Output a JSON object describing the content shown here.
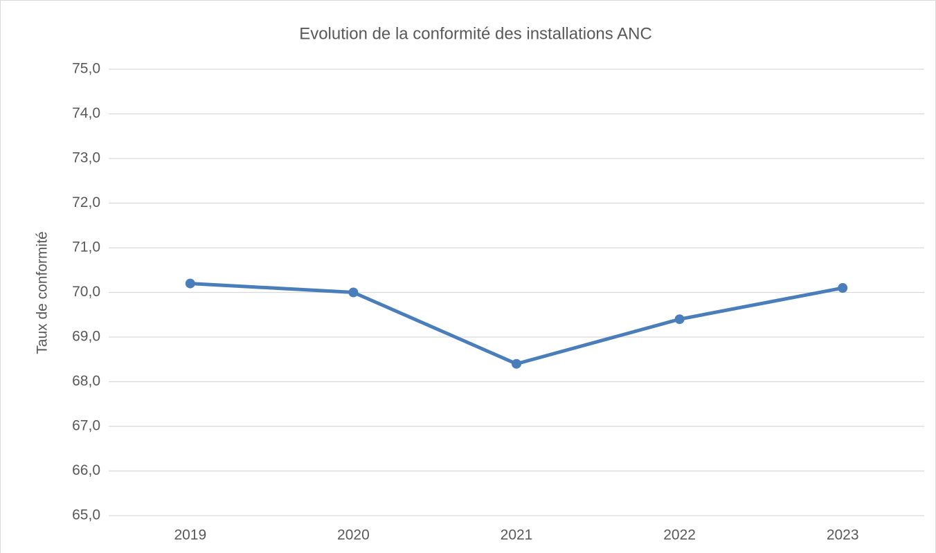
{
  "chart_data": {
    "type": "line",
    "title": "Evolution de la conformité des installations ANC",
    "y_label": "Taux de conformité",
    "categories": [
      "2019",
      "2020",
      "2021",
      "2022",
      "2023"
    ],
    "values": [
      70.2,
      70.0,
      68.4,
      69.4,
      70.1
    ],
    "color": "#4a7ebb",
    "ylim": [
      65,
      75
    ],
    "yticks": [
      {
        "value": 65,
        "label": "65,0"
      },
      {
        "value": 66,
        "label": "66,0"
      },
      {
        "value": 67,
        "label": "67,0"
      },
      {
        "value": 68,
        "label": "68,0"
      },
      {
        "value": 69,
        "label": "69,0"
      },
      {
        "value": 70,
        "label": "70,0"
      },
      {
        "value": 71,
        "label": "71,0"
      },
      {
        "value": 72,
        "label": "72,0"
      },
      {
        "value": 73,
        "label": "73,0"
      },
      {
        "value": 74,
        "label": "74,0"
      },
      {
        "value": 75,
        "label": "75,0"
      }
    ],
    "grid": true
  }
}
